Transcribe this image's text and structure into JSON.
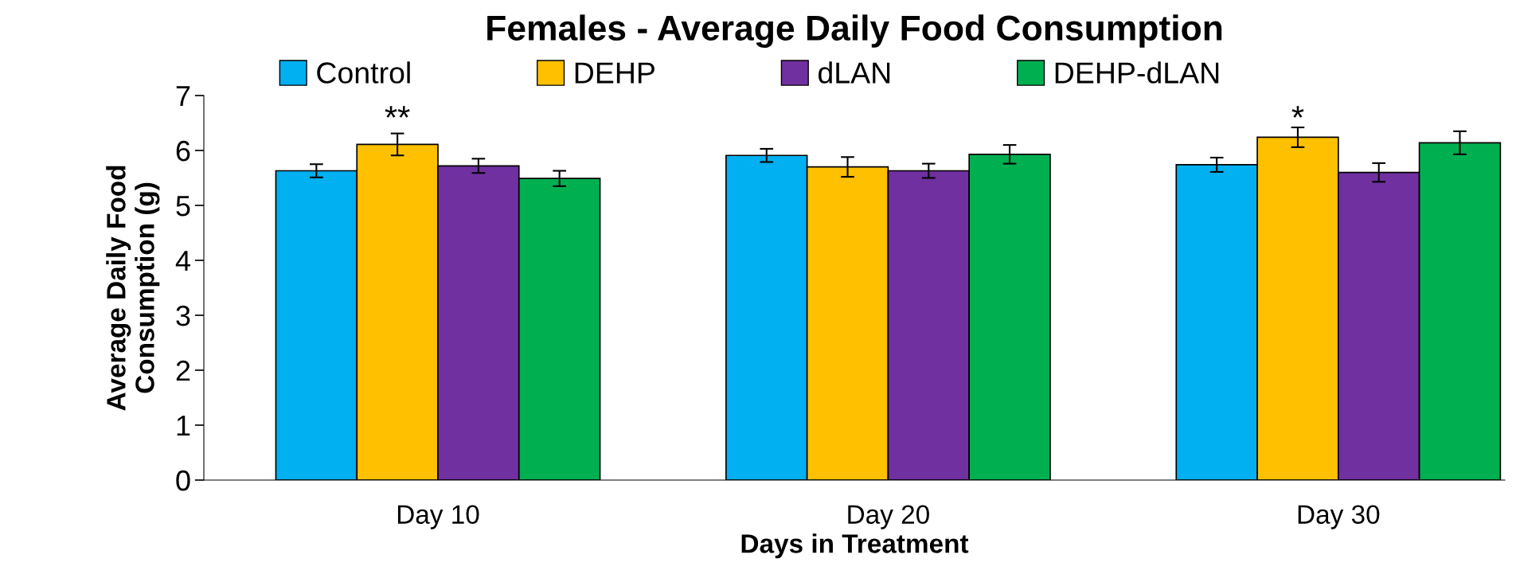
{
  "chart_data": {
    "type": "bar",
    "title": "Females - Average Daily Food Consumption",
    "xlabel": "Days in Treatment",
    "ylabel": "Average Daily Food\nConsumption (g)",
    "categories": [
      "Day 10",
      "Day 20",
      "Day 30"
    ],
    "series": [
      {
        "name": "Control",
        "color": "#00b0f0",
        "values": [
          5.63,
          5.91,
          5.74
        ],
        "errors": [
          0.12,
          0.12,
          0.13
        ]
      },
      {
        "name": "DEHP",
        "color": "#ffc000",
        "values": [
          6.11,
          5.7,
          6.24
        ],
        "errors": [
          0.2,
          0.18,
          0.18
        ]
      },
      {
        "name": "dLAN",
        "color": "#7030a0",
        "values": [
          5.72,
          5.63,
          5.6
        ],
        "errors": [
          0.13,
          0.13,
          0.17
        ]
      },
      {
        "name": "DEHP-dLAN",
        "color": "#00b050",
        "values": [
          5.49,
          5.93,
          6.14
        ],
        "errors": [
          0.14,
          0.17,
          0.21
        ]
      }
    ],
    "annotations": [
      "**",
      "*"
    ],
    "ylim": [
      0,
      7
    ],
    "yticks": [
      0,
      1,
      2,
      3,
      4,
      5,
      6,
      7
    ],
    "grid": false,
    "legend": "top"
  }
}
